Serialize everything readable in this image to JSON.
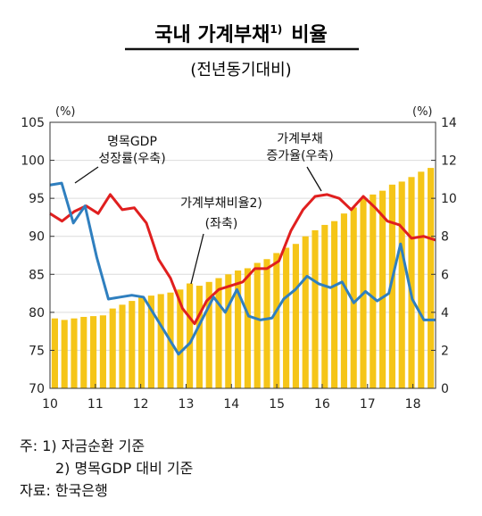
{
  "header": {
    "title": "국내 가계부채",
    "title_sup": "1)",
    "title_tail": "비율",
    "subtitle": "(전년동기대비)"
  },
  "chart_data": {
    "type": "bar+line",
    "left_unit": "(%)",
    "right_unit": "(%)",
    "left_ylim": [
      70,
      105
    ],
    "left_ticks": [
      70,
      75,
      80,
      85,
      90,
      95,
      100,
      105
    ],
    "right_ylim": [
      0,
      14
    ],
    "right_ticks": [
      0,
      2,
      4,
      6,
      8,
      10,
      12,
      14
    ],
    "x_ticks": [
      "10",
      "11",
      "12",
      "13",
      "14",
      "15",
      "16",
      "17",
      "18"
    ],
    "x_start": 2010.0,
    "x_step": 0.25,
    "series": [
      {
        "name": "가계부채비율2) (좌축)",
        "kind": "bar",
        "axis": "left",
        "color": "#F5C518",
        "values": [
          79.2,
          79.0,
          79.2,
          79.4,
          79.5,
          79.6,
          80.5,
          81.0,
          81.5,
          82.0,
          82.2,
          82.4,
          82.6,
          83.0,
          83.8,
          83.5,
          84.0,
          84.5,
          85.0,
          85.5,
          85.8,
          86.5,
          87.0,
          87.8,
          88.5,
          89.0,
          90.0,
          90.8,
          91.5,
          92.0,
          93.0,
          93.8,
          95.0,
          95.5,
          96.0,
          96.8,
          97.2,
          97.8,
          98.5,
          99.0
        ]
      },
      {
        "name": "가계부채 증가율(우축)",
        "kind": "line",
        "axis": "right",
        "color": "#E01F1F",
        "values": [
          9.2,
          8.8,
          9.3,
          9.6,
          9.2,
          10.2,
          9.4,
          9.5,
          8.7,
          6.8,
          5.8,
          4.2,
          3.4,
          4.6,
          5.2,
          5.4,
          5.6,
          6.3,
          6.3,
          6.7,
          8.3,
          9.4,
          10.1,
          10.2,
          10.0,
          9.4,
          10.1,
          9.5,
          8.8,
          8.6,
          7.9,
          8.0,
          7.8
        ]
      },
      {
        "name": "명목GDP 성장률(우축)",
        "kind": "line",
        "axis": "right",
        "color": "#2F7FBF",
        "values": [
          10.7,
          10.8,
          8.7,
          9.6,
          6.9,
          4.7,
          4.8,
          4.9,
          4.8,
          3.8,
          2.8,
          1.8,
          2.4,
          3.6,
          4.8,
          4.0,
          5.2,
          3.8,
          3.6,
          3.7,
          4.7,
          5.2,
          5.9,
          5.5,
          5.3,
          5.6,
          4.5,
          5.1,
          4.6,
          5.0,
          7.6,
          4.7,
          3.6,
          3.6
        ]
      }
    ],
    "annotations": {
      "gdp_line1": "명목GDP",
      "gdp_line2": "성장률(우축)",
      "debt_growth_line1": "가계부채",
      "debt_growth_line2": "증가율(우축)",
      "ratio_line1": "가계부채비율2)",
      "ratio_line2": "(좌축)"
    }
  },
  "footnotes": {
    "note1": "주: 1) 자금순환 기준",
    "note2": "2) 명목GDP 대비 기준",
    "source": "자료: 한국은행"
  }
}
